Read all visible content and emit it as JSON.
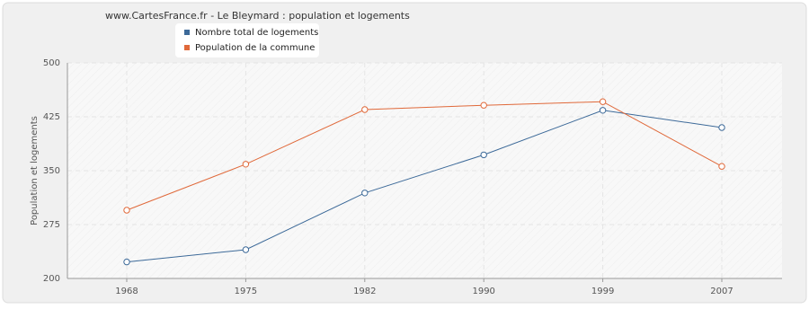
{
  "chart_data": {
    "type": "line",
    "title": "www.CartesFrance.fr - Le Bleymard : population et logements",
    "y_label": "Population et logements",
    "categories": [
      "1968",
      "1975",
      "1982",
      "1990",
      "1999",
      "2007"
    ],
    "series": [
      {
        "name": "Nombre total de logements",
        "color": "#3d6a99",
        "values": [
          223,
          240,
          319,
          372,
          434,
          410
        ]
      },
      {
        "name": "Population de la commune",
        "color": "#e0693a",
        "values": [
          295,
          359,
          435,
          441,
          446,
          356
        ]
      }
    ],
    "ylim": [
      200,
      500
    ],
    "yticks": [
      200,
      275,
      350,
      425,
      500
    ],
    "grid": true
  }
}
